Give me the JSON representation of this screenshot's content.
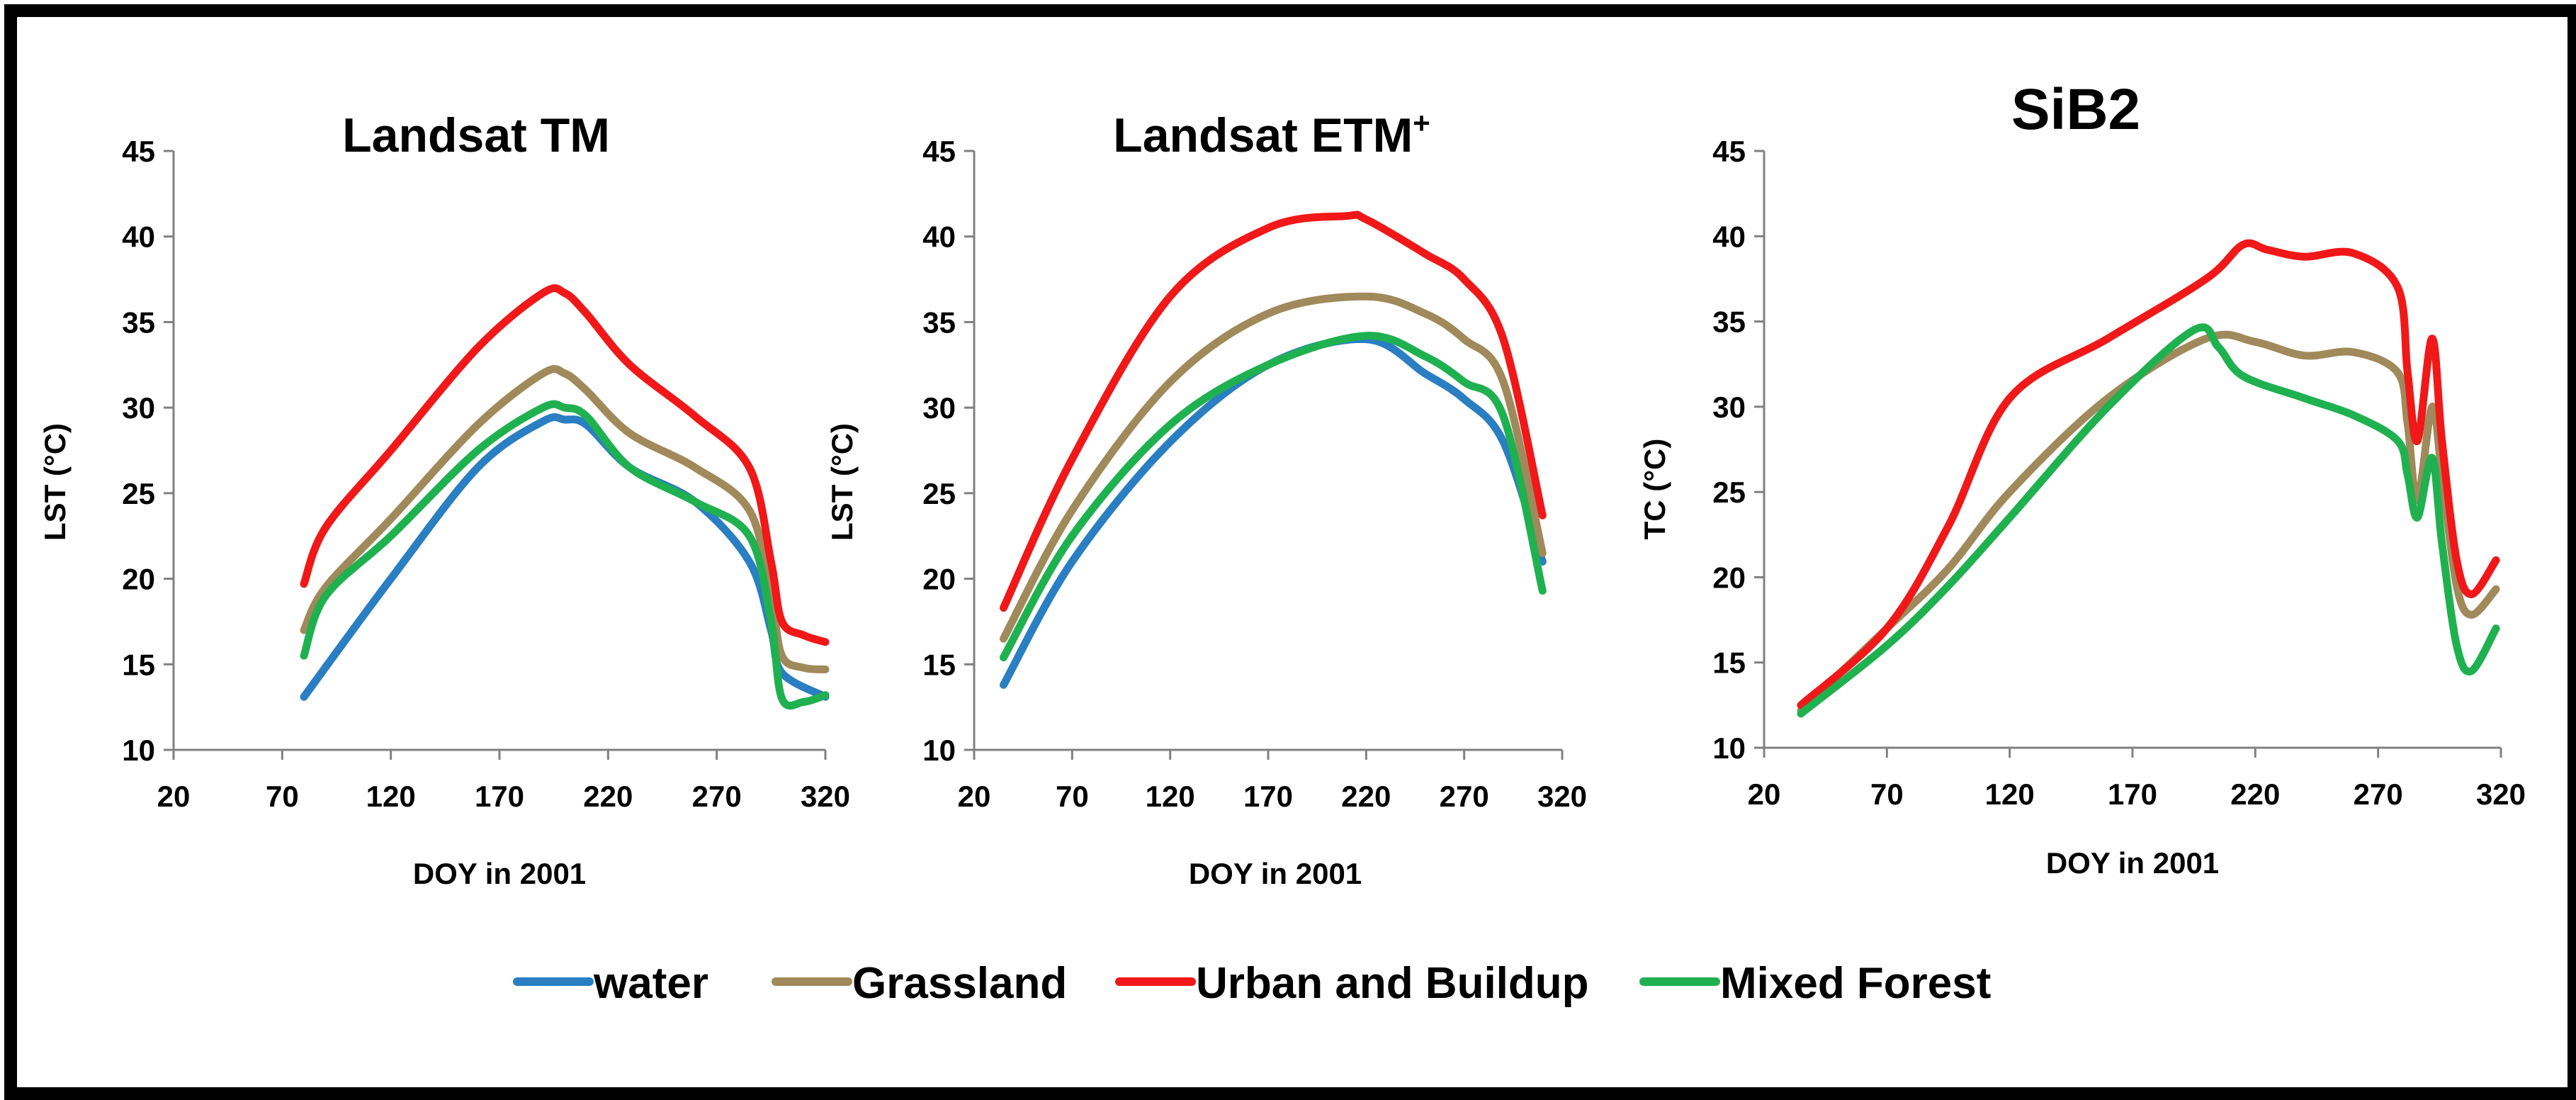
{
  "chart_data": [
    {
      "type": "line",
      "title": "Landsat TM",
      "title_sup": "",
      "xlabel": "DOY in 2001",
      "ylabel": "LST (°C)",
      "xlim": [
        20,
        320
      ],
      "ylim": [
        10,
        45
      ],
      "xticks": [
        20,
        70,
        120,
        170,
        220,
        270,
        320
      ],
      "yticks": [
        10,
        15,
        20,
        25,
        30,
        35,
        40,
        45
      ],
      "series": [
        {
          "name": "water",
          "x": [
            80,
            120,
            160,
            190,
            200,
            210,
            230,
            260,
            285,
            295,
            300,
            320
          ],
          "y": [
            13.1,
            20.0,
            26.5,
            29.2,
            29.3,
            29.0,
            26.5,
            24.5,
            21.0,
            17.0,
            14.5,
            13.1
          ]
        },
        {
          "name": "Grassland",
          "x": [
            80,
            90,
            120,
            160,
            190,
            200,
            210,
            230,
            260,
            285,
            295,
            300,
            310,
            320
          ],
          "y": [
            17.0,
            19.5,
            23.5,
            29.0,
            32.0,
            32.0,
            31.0,
            28.5,
            26.5,
            24.0,
            19.0,
            15.5,
            14.8,
            14.7
          ]
        },
        {
          "name": "Urban and Buildup",
          "x": [
            80,
            90,
            120,
            160,
            190,
            200,
            210,
            230,
            260,
            285,
            295,
            300,
            310,
            320
          ],
          "y": [
            19.7,
            23.0,
            27.5,
            33.5,
            36.7,
            36.7,
            35.5,
            32.5,
            29.5,
            26.5,
            21.0,
            17.5,
            16.7,
            16.3
          ]
        },
        {
          "name": "Mixed Forest",
          "x": [
            80,
            90,
            120,
            160,
            190,
            200,
            210,
            230,
            260,
            285,
            295,
            300,
            310,
            320
          ],
          "y": [
            15.5,
            19.0,
            22.5,
            27.5,
            30.0,
            30.0,
            29.5,
            26.5,
            24.5,
            22.5,
            17.5,
            13.0,
            12.8,
            13.2
          ]
        }
      ]
    },
    {
      "type": "line",
      "title": "Landsat ETM",
      "title_sup": "+",
      "xlabel": "DOY in 2001",
      "ylabel": "LST (°C)",
      "xlim": [
        20,
        320
      ],
      "ylim": [
        10,
        45
      ],
      "xticks": [
        20,
        70,
        120,
        170,
        220,
        270,
        320
      ],
      "yticks": [
        10,
        15,
        20,
        25,
        30,
        35,
        40,
        45
      ],
      "series": [
        {
          "name": "water",
          "x": [
            35,
            70,
            120,
            170,
            220,
            250,
            270,
            290,
            310
          ],
          "y": [
            13.8,
            21.0,
            28.0,
            32.5,
            34.0,
            32.0,
            30.5,
            28.0,
            21.0
          ]
        },
        {
          "name": "Grassland",
          "x": [
            35,
            70,
            120,
            170,
            220,
            250,
            270,
            290,
            310
          ],
          "y": [
            16.5,
            24.0,
            31.5,
            35.5,
            36.5,
            35.5,
            34.0,
            31.5,
            21.5
          ]
        },
        {
          "name": "Urban and Buildup",
          "x": [
            35,
            70,
            120,
            170,
            210,
            220,
            250,
            270,
            290,
            310
          ],
          "y": [
            18.3,
            27.0,
            36.5,
            40.5,
            41.2,
            41.0,
            39.0,
            37.5,
            34.0,
            23.7
          ]
        },
        {
          "name": "Mixed Forest",
          "x": [
            35,
            70,
            120,
            170,
            220,
            250,
            270,
            290,
            310
          ],
          "y": [
            15.4,
            22.5,
            29.0,
            32.5,
            34.2,
            33.0,
            31.5,
            29.5,
            19.3
          ]
        }
      ]
    },
    {
      "type": "line",
      "title": "SiB2",
      "title_sup": "",
      "xlabel": "DOY in 2001",
      "ylabel": "TC (°C)",
      "xlim": [
        20,
        320
      ],
      "ylim": [
        10,
        45
      ],
      "xticks": [
        20,
        70,
        120,
        170,
        220,
        270,
        320
      ],
      "yticks": [
        10,
        15,
        20,
        25,
        30,
        35,
        40,
        45
      ],
      "series": [
        {
          "name": "water",
          "x": [],
          "y": []
        },
        {
          "name": "Grassland",
          "x": [
            35,
            70,
            95,
            120,
            160,
            200,
            220,
            240,
            260,
            278,
            282,
            286,
            292,
            296,
            302,
            308,
            318
          ],
          "y": [
            12.2,
            17.0,
            20.5,
            25.0,
            30.5,
            34.0,
            33.8,
            33.0,
            33.2,
            32.0,
            29.0,
            24.5,
            30.0,
            26.0,
            19.5,
            17.8,
            19.3
          ]
        },
        {
          "name": "Urban and Buildup",
          "x": [
            35,
            70,
            95,
            120,
            160,
            200,
            215,
            225,
            240,
            260,
            278,
            282,
            286,
            292,
            296,
            302,
            308,
            318
          ],
          "y": [
            12.5,
            17.0,
            23.0,
            30.5,
            34.0,
            37.5,
            39.5,
            39.2,
            38.8,
            39.0,
            37.0,
            32.0,
            28.0,
            34.0,
            28.0,
            21.0,
            19.0,
            21.0
          ]
        },
        {
          "name": "Mixed Forest",
          "x": [
            35,
            70,
            95,
            120,
            160,
            195,
            205,
            215,
            240,
            260,
            278,
            282,
            286,
            292,
            296,
            302,
            308,
            318
          ],
          "y": [
            12.0,
            16.0,
            19.5,
            23.5,
            30.0,
            34.5,
            33.5,
            31.8,
            30.5,
            29.5,
            28.0,
            26.0,
            23.5,
            27.0,
            22.0,
            16.0,
            14.5,
            17.0
          ]
        }
      ]
    }
  ],
  "colors": {
    "water": "#2A7EC2",
    "Grassland": "#A0895A",
    "Urban and Buildup": "#F01818",
    "Mixed Forest": "#1FB14F"
  },
  "legend": {
    "placement": "bottom",
    "items": [
      "water",
      "Grassland",
      "Urban and Buildup",
      "Mixed Forest"
    ]
  }
}
